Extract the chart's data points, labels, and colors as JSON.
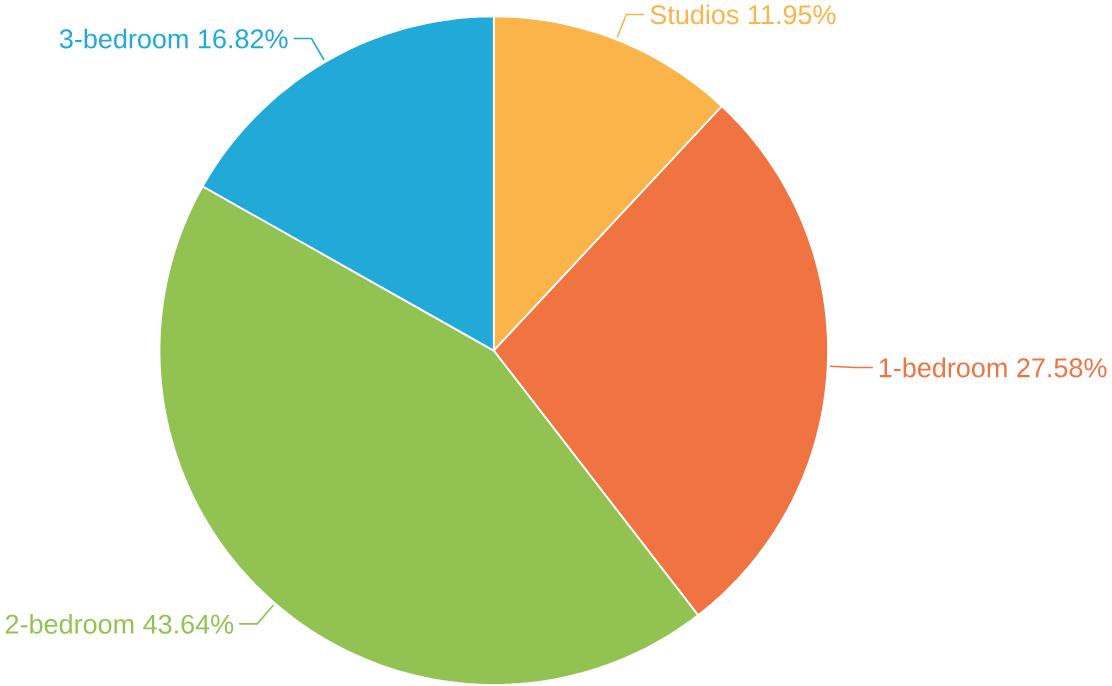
{
  "chart_data": {
    "type": "pie",
    "categories": [
      "Studios",
      "1-bedroom",
      "2-bedroom",
      "3-bedroom"
    ],
    "values": [
      11.95,
      27.58,
      43.64,
      16.82
    ],
    "value_labels": [
      "11.95%",
      "27.58%",
      "43.64%",
      "16.82%"
    ],
    "colors": [
      "#fbb44a",
      "#ef7442",
      "#92c352",
      "#21a9d8"
    ]
  }
}
